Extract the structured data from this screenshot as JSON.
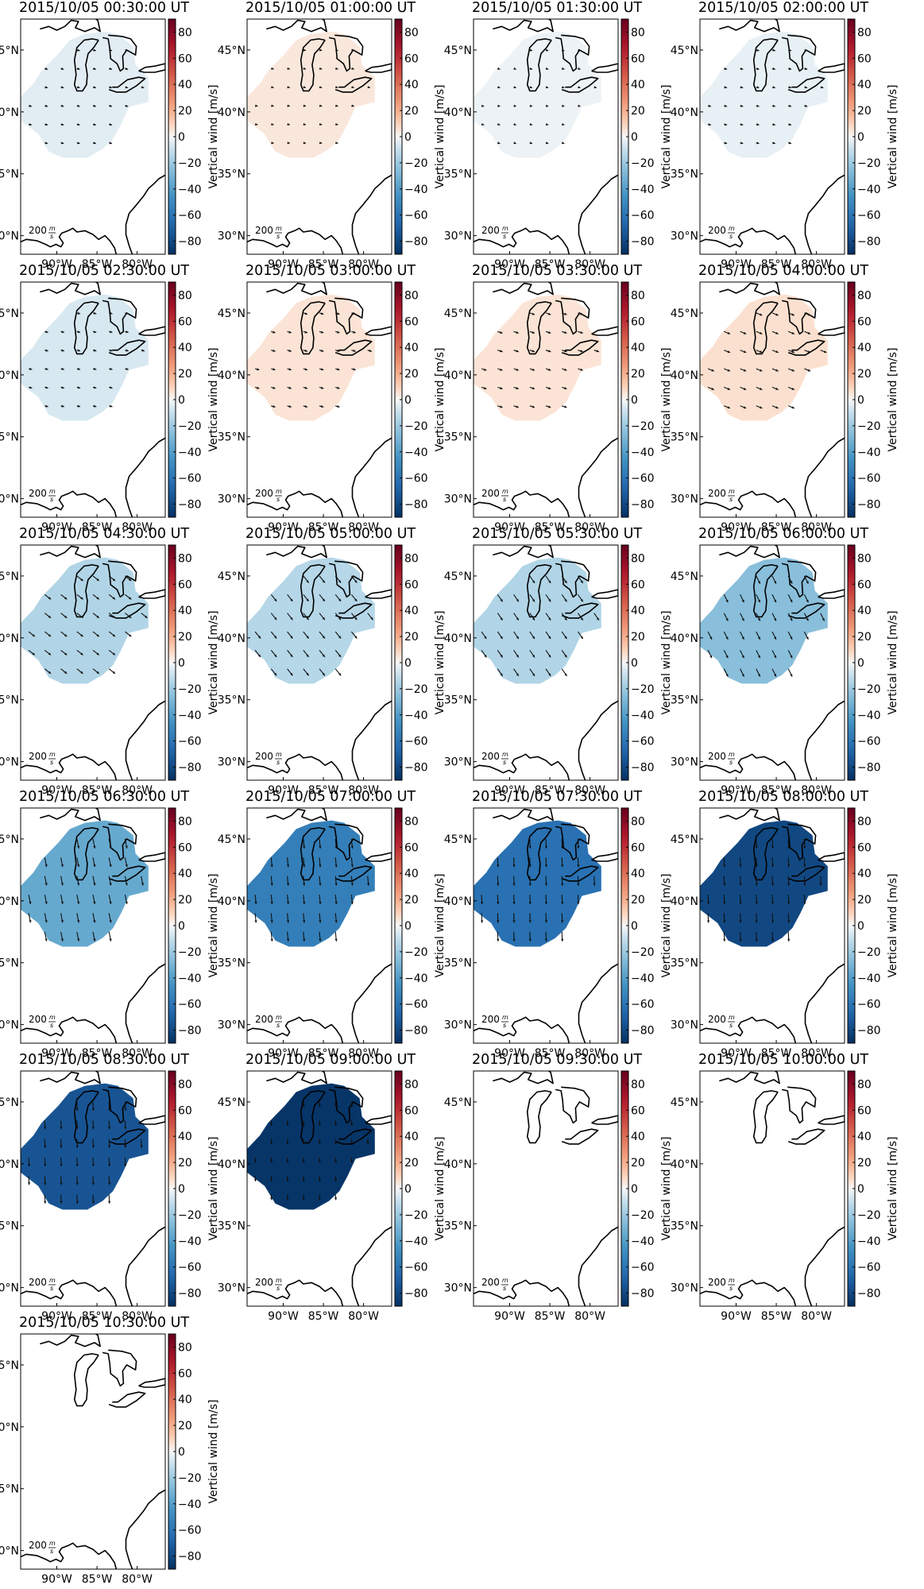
{
  "panels": [
    {
      "title": "2015/10/05 00:30:00 UT",
      "level": -4,
      "arrow": {
        "dx": 0.35,
        "dy": 0.08,
        "len": 0.35
      }
    },
    {
      "title": "2015/10/05 01:00:00 UT",
      "level": 4,
      "arrow": {
        "dx": 0.3,
        "dy": 0.05,
        "len": 0.3
      }
    },
    {
      "title": "2015/10/05 01:30:00 UT",
      "level": -2,
      "arrow": {
        "dx": 0.3,
        "dy": 0.08,
        "len": 0.3
      }
    },
    {
      "title": "2015/10/05 02:00:00 UT",
      "level": -3,
      "arrow": {
        "dx": 0.35,
        "dy": 0.08,
        "len": 0.35
      }
    },
    {
      "title": "2015/10/05 02:30:00 UT",
      "level": -6,
      "arrow": {
        "dx": 0.4,
        "dy": 0.1,
        "len": 0.4
      }
    },
    {
      "title": "2015/10/05 03:00:00 UT",
      "level": 5,
      "arrow": {
        "dx": 0.5,
        "dy": 0.15,
        "len": 0.5
      }
    },
    {
      "title": "2015/10/05 03:30:00 UT",
      "level": 5,
      "arrow": {
        "dx": 0.6,
        "dy": 0.2,
        "len": 0.6
      }
    },
    {
      "title": "2015/10/05 04:00:00 UT",
      "level": 6,
      "arrow": {
        "dx": 0.75,
        "dy": 0.3,
        "len": 0.75
      }
    },
    {
      "title": "2015/10/05 04:30:00 UT",
      "level": -15,
      "arrow": {
        "dx": 0.7,
        "dy": 0.55,
        "len": 0.9
      }
    },
    {
      "title": "2015/10/05 05:00:00 UT",
      "level": -14,
      "arrow": {
        "dx": 0.6,
        "dy": 0.75,
        "len": 1.0
      }
    },
    {
      "title": "2015/10/05 05:30:00 UT",
      "level": -15,
      "arrow": {
        "dx": 0.55,
        "dy": 0.8,
        "len": 1.0
      }
    },
    {
      "title": "2015/10/05 06:00:00 UT",
      "level": -25,
      "arrow": {
        "dx": 0.45,
        "dy": 0.9,
        "len": 1.0
      }
    },
    {
      "title": "2015/10/05 06:30:00 UT",
      "level": -35,
      "arrow": {
        "dx": 0.2,
        "dy": 1.0,
        "len": 1.1
      }
    },
    {
      "title": "2015/10/05 07:00:00 UT",
      "level": -55,
      "arrow": {
        "dx": 0.1,
        "dy": 1.0,
        "len": 1.1
      }
    },
    {
      "title": "2015/10/05 07:30:00 UT",
      "level": -62,
      "arrow": {
        "dx": 0.05,
        "dy": 1.0,
        "len": 1.1
      }
    },
    {
      "title": "2015/10/05 08:00:00 UT",
      "level": -80,
      "arrow": {
        "dx": 0.05,
        "dy": 1.0,
        "len": 1.1
      }
    },
    {
      "title": "2015/10/05 08:30:00 UT",
      "level": -75,
      "arrow": {
        "dx": 0.05,
        "dy": 1.0,
        "len": 1.0
      }
    },
    {
      "title": "2015/10/05 09:00:00 UT",
      "level": -88,
      "arrow": {
        "dx": 0.05,
        "dy": 0.6,
        "len": 0.6
      }
    },
    {
      "title": "2015/10/05 09:30:00 UT",
      "level": null,
      "arrow": null
    },
    {
      "title": "2015/10/05 10:00:00 UT",
      "level": null,
      "arrow": null
    },
    {
      "title": "2015/10/05 10:30:00 UT",
      "level": null,
      "arrow": null
    }
  ],
  "axes": {
    "lat_ticks": [
      "45°N",
      "40°N",
      "35°N",
      "30°N"
    ],
    "lat_values": [
      45,
      40,
      35,
      30
    ],
    "lon_ticks": [
      "90°W",
      "85°W",
      "80°W"
    ],
    "lon_values": [
      -90,
      -85,
      -80
    ],
    "lon_range": [
      -94.5,
      -76.5
    ],
    "lat_range": [
      28.5,
      47.5
    ]
  },
  "colorbar": {
    "label": "Vertical wind [m/s]",
    "ticks": [
      "80",
      "60",
      "40",
      "20",
      "0",
      "−20",
      "−40",
      "−60",
      "−80"
    ],
    "tick_values": [
      80,
      60,
      40,
      20,
      0,
      -20,
      -40,
      -60,
      -80
    ],
    "range": [
      -90,
      90
    ],
    "colormap": "RdBu_r"
  },
  "scale_label_num": "200",
  "scale_label_unit_top": "m",
  "scale_label_unit_bot": "s",
  "colors": {
    "coast": "#000000",
    "arrow": "#111111"
  }
}
